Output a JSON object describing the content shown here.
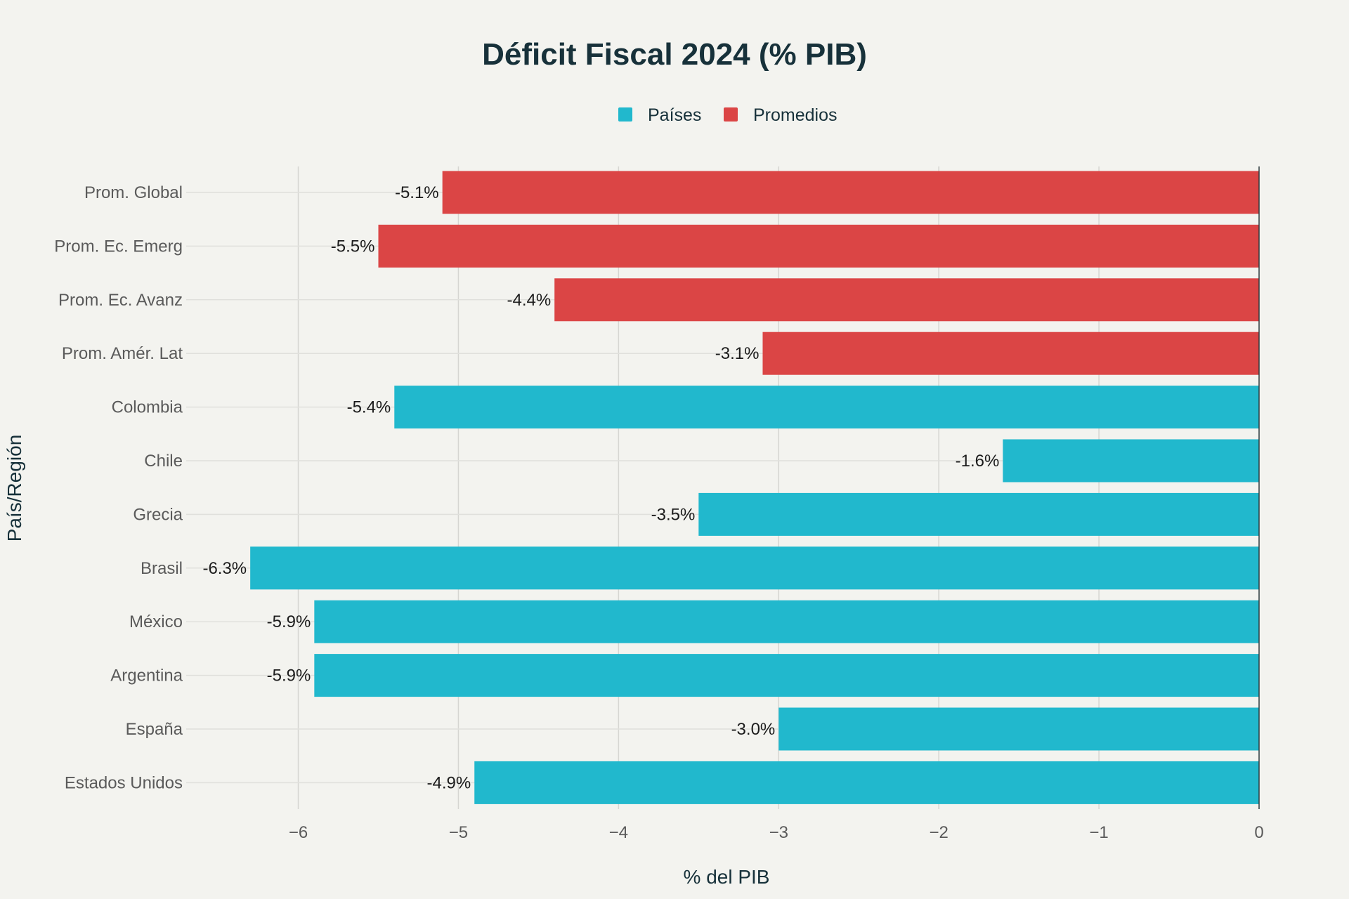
{
  "chart_data": {
    "type": "bar",
    "orientation": "horizontal",
    "title": "Déficit Fiscal 2024 (% PIB)",
    "xlabel": "% del PIB",
    "ylabel": "País/Región",
    "xlim": [
      -6.7,
      0
    ],
    "x_ticks": [
      -6,
      -5,
      -4,
      -3,
      -2,
      -1,
      0
    ],
    "x_tick_labels": [
      "−6",
      "−5",
      "−4",
      "−3",
      "−2",
      "−1",
      "0"
    ],
    "grid": true,
    "legend_position": "top-center",
    "legend": [
      {
        "name": "Países",
        "color": "#21b8cd"
      },
      {
        "name": "Promedios",
        "color": "#db4545"
      }
    ],
    "categories": [
      "Prom. Global",
      "Prom. Ec. Emerg",
      "Prom. Ec. Avanz",
      "Prom. Amér. Lat",
      "Colombia",
      "Chile",
      "Grecia",
      "Brasil",
      "México",
      "Argentina",
      "España",
      "Estados Unidos"
    ],
    "values": [
      -5.1,
      -5.5,
      -4.4,
      -3.1,
      -5.4,
      -1.6,
      -3.5,
      -6.3,
      -5.9,
      -5.9,
      -3.0,
      -4.9
    ],
    "value_labels": [
      "-5.1%",
      "-5.5%",
      "-4.4%",
      "-3.1%",
      "-5.4%",
      "-1.6%",
      "-3.5%",
      "-6.3%",
      "-5.9%",
      "-5.9%",
      "-3.0%",
      "-4.9%"
    ],
    "groups": [
      "Promedios",
      "Promedios",
      "Promedios",
      "Promedios",
      "Países",
      "Países",
      "Países",
      "Países",
      "Países",
      "Países",
      "Países",
      "Países"
    ]
  }
}
